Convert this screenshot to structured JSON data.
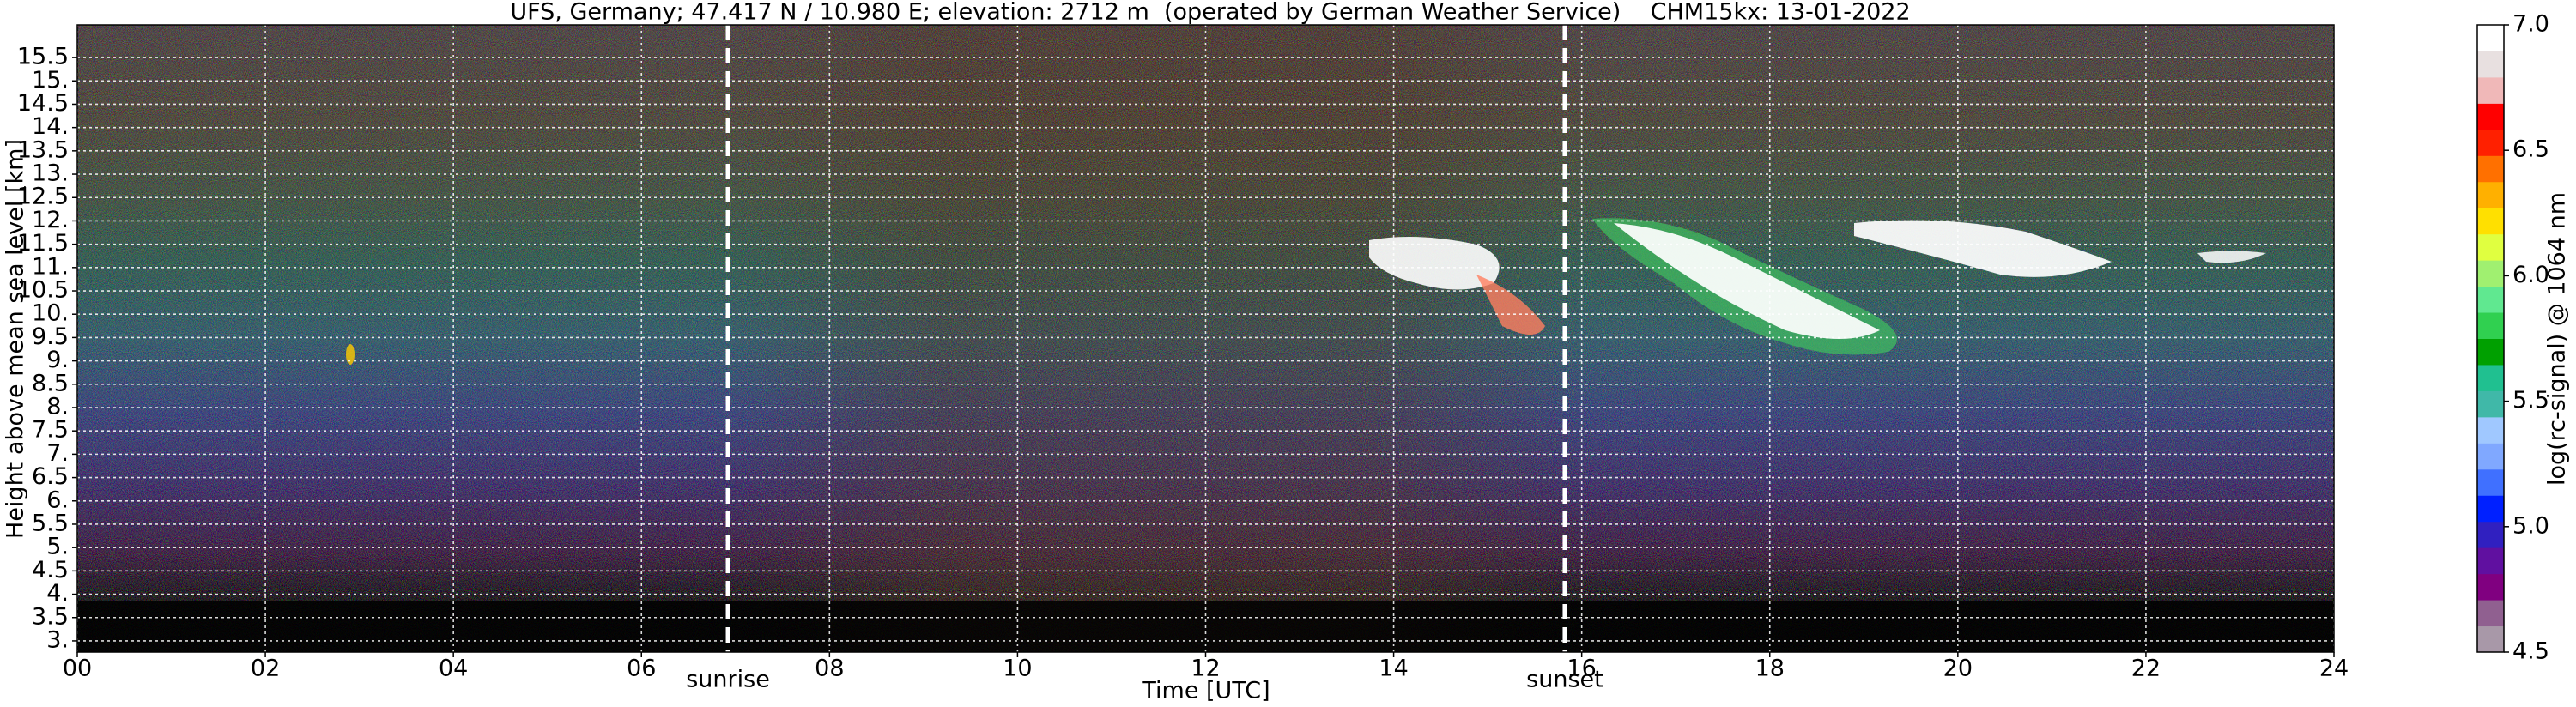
{
  "chart_data": {
    "type": "heatmap",
    "title": "UFS, Germany; 47.417 N / 10.980 E; elevation: 2712 m  (operated by German Weather Service)    CHM15kx: 13-01-2022",
    "x_label": "Time [UTC]",
    "y_label": "Height above mean sea level [km]",
    "xlim": [
      0,
      24
    ],
    "xticks": [
      {
        "value": 0,
        "label": "00"
      },
      {
        "value": 2,
        "label": "02"
      },
      {
        "value": 4,
        "label": "04"
      },
      {
        "value": 6,
        "label": "06"
      },
      {
        "value": 8,
        "label": "08"
      },
      10,
      12,
      14,
      16,
      18,
      20,
      22,
      24
    ],
    "ylim": [
      2.76,
      16.2
    ],
    "yticks": [
      {
        "value": 3,
        "label": "3."
      },
      3.5,
      {
        "value": 4,
        "label": "4."
      },
      4.5,
      {
        "value": 5,
        "label": "5."
      },
      5.5,
      {
        "value": 6,
        "label": "6."
      },
      6.5,
      {
        "value": 7,
        "label": "7."
      },
      7.5,
      {
        "value": 8,
        "label": "8."
      },
      8.5,
      {
        "value": 9,
        "label": "9."
      },
      9.5,
      {
        "value": 10,
        "label": "10."
      },
      10.5,
      {
        "value": 11,
        "label": "11."
      },
      11.5,
      {
        "value": 12,
        "label": "12."
      },
      12.5,
      {
        "value": 13,
        "label": "13."
      },
      13.5,
      {
        "value": 14,
        "label": "14."
      },
      14.5,
      {
        "value": 15,
        "label": "15."
      },
      15.5
    ],
    "grid": true,
    "annotations": [
      {
        "text": "sunrise",
        "x": 6.92
      },
      {
        "text": "sunset",
        "x": 15.82
      }
    ],
    "colorbar": {
      "label": "log(rc-signal) @ 1064 nm",
      "clim": [
        4.5,
        7.0
      ],
      "ticks": [
        4.5,
        {
          "value": 5,
          "label": "5.0"
        },
        5.5,
        {
          "value": 6,
          "label": "6.0"
        },
        6.5,
        {
          "value": 7,
          "label": "7.0"
        }
      ],
      "colors": [
        "#a898a8",
        "#906090",
        "#800080",
        "#6010a0",
        "#3020c0",
        "#0020ff",
        "#4070ff",
        "#80a8ff",
        "#a0c8ff",
        "#40b8a8",
        "#20c090",
        "#00a000",
        "#30d050",
        "#60e890",
        "#a0f070",
        "#e0ff40",
        "#ffe000",
        "#ffb000",
        "#ff7000",
        "#ff2000",
        "#ff0000",
        "#f0b8b8",
        "#e8e0e0",
        "#ffffff"
      ]
    }
  }
}
